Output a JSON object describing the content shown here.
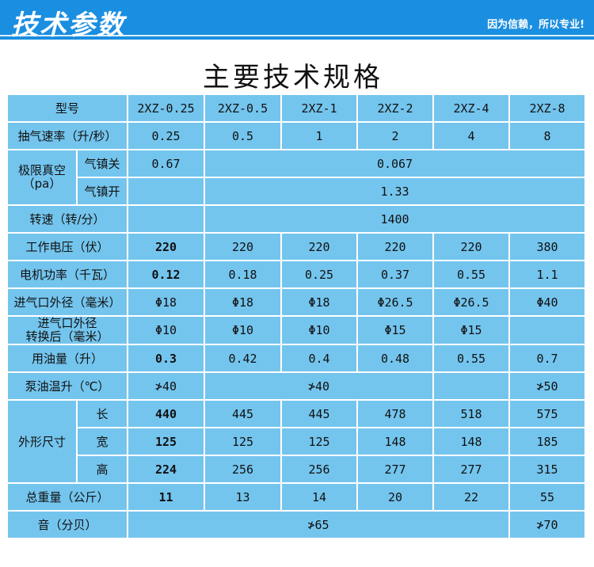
{
  "header": {
    "title": "技术参数",
    "slogan": "因为信赖，所以专业!"
  },
  "heading": "主要技术规格",
  "table": {
    "model_label": "型号",
    "models": [
      "2XZ-0.25",
      "2XZ-0.5",
      "2XZ-1",
      "2XZ-2",
      "2XZ-4",
      "2XZ-8"
    ],
    "pump_speed": {
      "label": "抽气速率（升/秒）",
      "values": [
        "0.25",
        "0.5",
        "1",
        "2",
        "4",
        "8"
      ]
    },
    "ultimate_vacuum": {
      "label_line1": "极限真空",
      "label_line2": "（pa）",
      "ballast_off_label": "气镇关",
      "ballast_off_first": "0.67",
      "ballast_off_rest": "0.067",
      "ballast_on_label": "气镇开",
      "ballast_on_first": "",
      "ballast_on_rest": "1.33"
    },
    "rotation": {
      "label": "转速（转/分）",
      "first": "",
      "rest": "1400"
    },
    "voltage": {
      "label": "工作电压（伏）",
      "values": [
        "220",
        "220",
        "220",
        "220",
        "220",
        "380"
      ]
    },
    "motor_power": {
      "label": "电机功率（千瓦）",
      "values": [
        "0.12",
        "0.18",
        "0.25",
        "0.37",
        "0.55",
        "1.1"
      ]
    },
    "inlet_od": {
      "label": "进气口外径（毫米）",
      "values": [
        "Φ18",
        "Φ18",
        "Φ18",
        "Φ26.5",
        "Φ26.5",
        "Φ40"
      ]
    },
    "inlet_converted": {
      "label_line1": "进气口外径",
      "label_line2": "转换后（毫米）",
      "values": [
        "Φ10",
        "Φ10",
        "Φ10",
        "Φ15",
        "Φ15",
        ""
      ]
    },
    "oil_volume": {
      "label": "用油量（升）",
      "values": [
        "0.3",
        "0.42",
        "0.4",
        "0.48",
        "0.55",
        "0.7"
      ]
    },
    "oil_temp": {
      "label": "泵油温升（℃）",
      "first": "≯40",
      "middle": "≯40",
      "last": "≯50"
    },
    "dimensions": {
      "label": "外形尺寸",
      "length_label": "长",
      "length": [
        "440",
        "445",
        "445",
        "478",
        "518",
        "575"
      ],
      "width_label": "宽",
      "width": [
        "125",
        "125",
        "125",
        "148",
        "148",
        "185"
      ],
      "height_label": "高",
      "height": [
        "224",
        "256",
        "256",
        "277",
        "277",
        "315"
      ]
    },
    "weight": {
      "label": "总重量（公斤）",
      "values": [
        "11",
        "13",
        "14",
        "20",
        "22",
        "55"
      ]
    },
    "noise": {
      "label": "音（分贝）",
      "rest": "≯65",
      "last": "≯70"
    }
  }
}
